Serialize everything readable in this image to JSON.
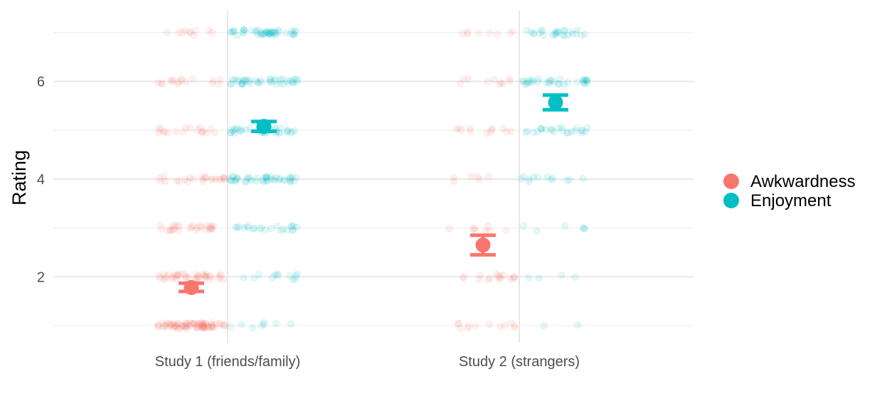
{
  "chart_data": {
    "type": "scatter",
    "title": "",
    "xlabel": "",
    "ylabel": "Rating",
    "ylim": [
      0.65,
      7.45
    ],
    "y_ticks": [
      2,
      4,
      6
    ],
    "grid": true,
    "legend_position": "right",
    "categories": [
      "Study 1 (friends/family)",
      "Study 2 (strangers)"
    ],
    "rating_levels": [
      1,
      2,
      3,
      4,
      5,
      6,
      7
    ],
    "series": [
      {
        "name": "Awkwardness",
        "color": "#F8766D",
        "mean": [
          1.78,
          2.65
        ],
        "ci_low": [
          1.7,
          2.45
        ],
        "ci_high": [
          1.87,
          2.85
        ],
        "raw_counts": [
          [
            80,
            40,
            28,
            24,
            18,
            16,
            10
          ],
          [
            12,
            16,
            8,
            6,
            12,
            10,
            8
          ]
        ]
      },
      {
        "name": "Enjoyment",
        "color": "#00BFC4",
        "mean": [
          5.08,
          5.57
        ],
        "ci_low": [
          4.98,
          5.42
        ],
        "ci_high": [
          5.18,
          5.72
        ],
        "raw_counts": [
          [
            8,
            12,
            22,
            44,
            38,
            42,
            48
          ],
          [
            2,
            4,
            6,
            12,
            24,
            34,
            26
          ]
        ]
      }
    ]
  }
}
